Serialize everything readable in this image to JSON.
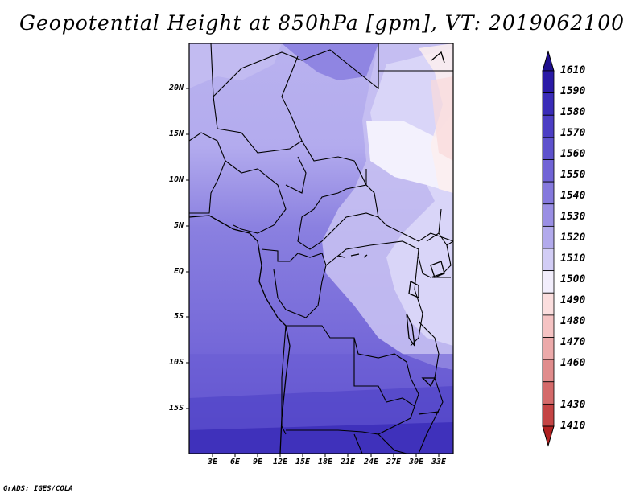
{
  "title": "Geopotential Height at 850hPa [gpm], VT: 2019062100",
  "credit": "GrADS: IGES/COLA",
  "map": {
    "lat_labels": [
      "20N",
      "15N",
      "10N",
      "5N",
      "EQ",
      "5S",
      "10S",
      "15S"
    ],
    "lon_labels": [
      "3E",
      "6E",
      "9E",
      "12E",
      "15E",
      "18E",
      "21E",
      "24E",
      "27E",
      "30E",
      "33E"
    ]
  },
  "colorbar": {
    "labels": [
      "1610",
      "1590",
      "1580",
      "1570",
      "1560",
      "1550",
      "1540",
      "1530",
      "1520",
      "1510",
      "1500",
      "1490",
      "1480",
      "1470",
      "1460",
      "1430",
      "1410"
    ],
    "colors": [
      "#1f0f8f",
      "#2a1aa6",
      "#3a2cb8",
      "#4c3ec4",
      "#5e52cd",
      "#7164d6",
      "#8579dd",
      "#9a8fe4",
      "#b2aaec",
      "#d2cdf5",
      "#f2eefc",
      "#fbdede",
      "#f5c3c3",
      "#ecaaaa",
      "#e08c8c",
      "#d46a6a",
      "#c44444",
      "#b02020"
    ]
  }
}
